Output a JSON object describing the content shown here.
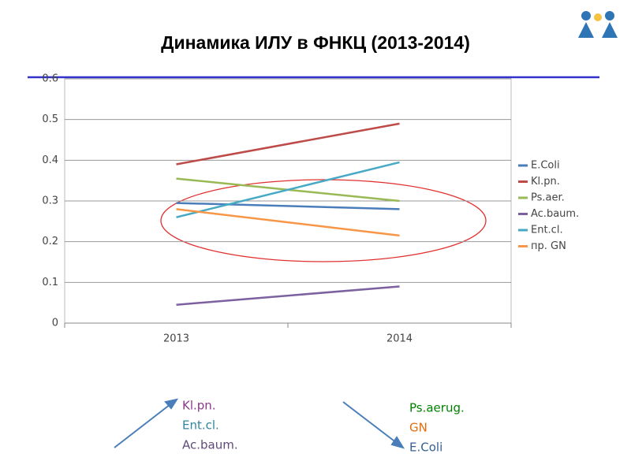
{
  "chart_data": {
    "type": "line",
    "title": "Динамика ИЛУ в ФНКЦ (2013-2014)",
    "categories": [
      "2013",
      "2014"
    ],
    "series": [
      {
        "name": "E.Coli",
        "color": "#4a7ebb",
        "values": [
          0.295,
          0.28
        ]
      },
      {
        "name": "Kl.pn.",
        "color": "#be4b48",
        "values": [
          0.39,
          0.49
        ]
      },
      {
        "name": "Ps.aer.",
        "color": "#98b954",
        "values": [
          0.355,
          0.3
        ]
      },
      {
        "name": "Ac.baum.",
        "color": "#7d60a0",
        "values": [
          0.045,
          0.09
        ]
      },
      {
        "name": "Ent.cl.",
        "color": "#46aac5",
        "values": [
          0.26,
          0.395
        ]
      },
      {
        "name": "пр. GN",
        "color": "#f79646",
        "values": [
          0.28,
          0.215
        ]
      }
    ],
    "ylim": [
      0,
      0.6
    ],
    "yticks": [
      0,
      0.1,
      0.2,
      0.3,
      0.4,
      0.5,
      0.6
    ],
    "grid": true,
    "legend": "right",
    "annotations": {
      "rising": [
        {
          "text": "Kl.pn.",
          "color": "#8b3a8b"
        },
        {
          "text": "Ent.cl.",
          "color": "#31859c"
        },
        {
          "text": "Ac.baum.",
          "color": "#604a7b"
        }
      ],
      "falling": [
        {
          "text": "Ps.aerug.",
          "color": "#008000"
        },
        {
          "text": "GN",
          "color": "#e46c0a"
        },
        {
          "text": "E.Coli",
          "color": "#376092"
        }
      ]
    }
  }
}
